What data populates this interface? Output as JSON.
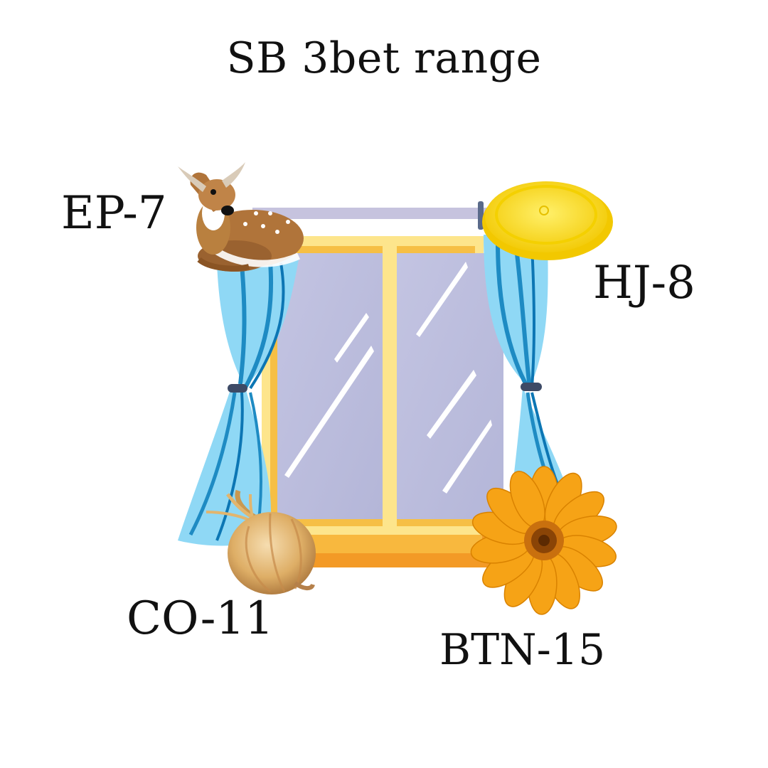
{
  "title": "SB 3bet range",
  "labels": {
    "ep": "EP-7",
    "hj": "HJ-8",
    "co": "CO-11",
    "btn": "BTN-15"
  },
  "icons": {
    "top_left": "deer-icon",
    "top_right": "yellow-lid-icon",
    "bottom_left": "onion-icon",
    "bottom_right": "sunflower-icon",
    "center": "curtained-window-icon"
  },
  "colors": {
    "window_frame_outer": "#f5b83a",
    "window_frame_inner": "#fde58c",
    "window_sill": "#f39a26",
    "glass": "#bcbedd",
    "curtain": "#8fd8f5",
    "curtain_dark": "#1e8bc3",
    "lid": "#ffe000",
    "flower": "#f6a316",
    "onion": "#e2b56e",
    "deer": "#b0743a"
  }
}
